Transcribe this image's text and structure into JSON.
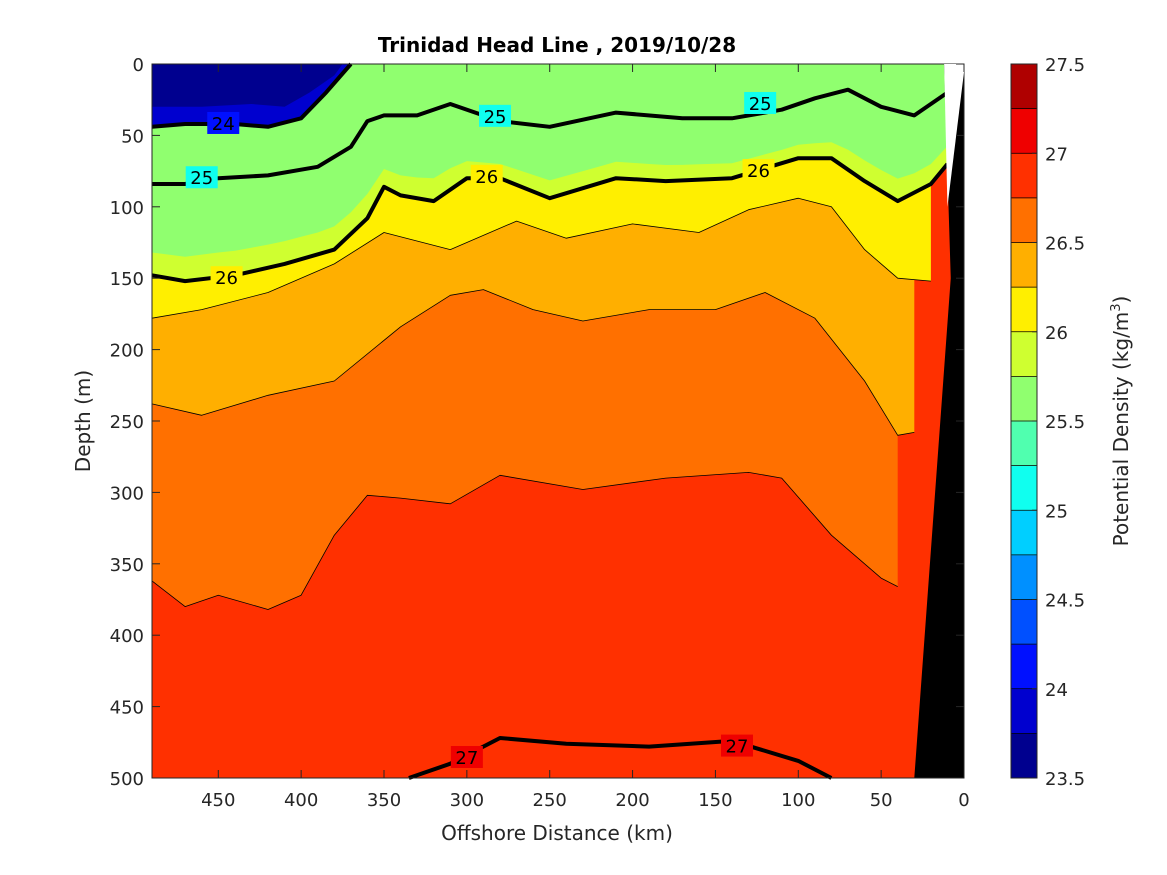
{
  "chart_data": {
    "type": "heatmap",
    "subtype": "filled-contour",
    "title": "Trinidad Head Line , 2019/10/28",
    "xlabel": "Offshore Distance (km)",
    "ylabel": "Depth (m)",
    "xlim": [
      490,
      0
    ],
    "ylim": [
      0,
      500
    ],
    "x_reversed": true,
    "y_reversed": true,
    "xticks": [
      "450",
      "400",
      "350",
      "300",
      "250",
      "200",
      "150",
      "100",
      "50",
      "0"
    ],
    "xtick_values": [
      450,
      400,
      350,
      300,
      250,
      200,
      150,
      100,
      50,
      0
    ],
    "yticks": [
      "0",
      "50",
      "100",
      "150",
      "200",
      "250",
      "300",
      "350",
      "400",
      "450",
      "500"
    ],
    "ytick_values": [
      0,
      50,
      100,
      150,
      200,
      250,
      300,
      350,
      400,
      450,
      500
    ],
    "colorbar": {
      "label": "Potential Density (kg/m",
      "label_sup": "3",
      "label_end": ")",
      "range": [
        23.5,
        27.5
      ],
      "step": 0.25,
      "ticks": [
        "27.5",
        "27",
        "26.5",
        "26",
        "25.5",
        "25",
        "24.5",
        "24",
        "23.5"
      ],
      "tick_values": [
        27.5,
        27,
        26.5,
        26,
        25.5,
        25,
        24.5,
        24,
        23.5
      ],
      "colormap": "jet",
      "colors": [
        "#00008f",
        "#0000cf",
        "#0010ff",
        "#0050ff",
        "#0090ff",
        "#00cfff",
        "#10ffef",
        "#50ffaf",
        "#90ff6f",
        "#cfff30",
        "#ffef00",
        "#ffaf00",
        "#ff7000",
        "#ff3000",
        "#ef0000",
        "#af0000"
      ]
    },
    "contour_labels": [
      {
        "text": "24",
        "x": 447,
        "y": 42
      },
      {
        "text": "25",
        "x": 460,
        "y": 80
      },
      {
        "text": "26",
        "x": 445,
        "y": 150
      },
      {
        "text": "25",
        "x": 283,
        "y": 37
      },
      {
        "text": "26",
        "x": 288,
        "y": 79
      },
      {
        "text": "25",
        "x": 123,
        "y": 28
      },
      {
        "text": "26",
        "x": 124,
        "y": 75
      },
      {
        "text": "27",
        "x": 300,
        "y": 486
      },
      {
        "text": "27",
        "x": 137,
        "y": 478
      }
    ],
    "isolines": [
      {
        "level": 27.0,
        "bold": true,
        "x": [
          335,
          310,
          280,
          240,
          190,
          140,
          100,
          80
        ],
        "y": [
          500,
          490,
          472,
          476,
          478,
          474,
          488,
          500
        ]
      },
      {
        "level": 26.75,
        "bold": false,
        "x": [
          490,
          470,
          450,
          420,
          400,
          380,
          360,
          340,
          310,
          280,
          230,
          180,
          130,
          110,
          80,
          50,
          40
        ],
        "y": [
          362,
          380,
          372,
          382,
          372,
          330,
          302,
          304,
          308,
          288,
          298,
          290,
          286,
          290,
          330,
          360,
          366
        ]
      },
      {
        "level": 26.5,
        "bold": false,
        "x": [
          490,
          460,
          420,
          380,
          340,
          310,
          290,
          260,
          230,
          190,
          150,
          120,
          90,
          60,
          40,
          30
        ],
        "y": [
          238,
          246,
          232,
          222,
          184,
          162,
          158,
          172,
          180,
          172,
          172,
          160,
          178,
          222,
          260,
          258
        ]
      },
      {
        "level": 26.25,
        "bold": false,
        "x": [
          490,
          460,
          420,
          380,
          350,
          310,
          270,
          240,
          200,
          160,
          130,
          100,
          80,
          60,
          40,
          20
        ],
        "y": [
          178,
          172,
          160,
          140,
          118,
          130,
          110,
          122,
          112,
          118,
          102,
          94,
          100,
          130,
          150,
          152
        ]
      },
      {
        "level": 26.0,
        "bold": true,
        "x": [
          490,
          470,
          440,
          410,
          380,
          360,
          350,
          340,
          320,
          300,
          280,
          250,
          210,
          180,
          140,
          100,
          80,
          60,
          40,
          20,
          10
        ],
        "y": [
          148,
          152,
          148,
          140,
          130,
          108,
          86,
          92,
          96,
          80,
          80,
          94,
          80,
          82,
          80,
          66,
          66,
          82,
          96,
          84,
          70
        ]
      },
      {
        "level": 25.0,
        "bold": true,
        "x": [
          490,
          470,
          450,
          420,
          390,
          370,
          360,
          350,
          330,
          310,
          280,
          250,
          210,
          170,
          140,
          110,
          90,
          70,
          50,
          30,
          10
        ],
        "y": [
          84,
          84,
          80,
          78,
          72,
          58,
          40,
          36,
          36,
          28,
          40,
          44,
          34,
          38,
          38,
          32,
          24,
          18,
          30,
          36,
          20
        ]
      },
      {
        "level": 24.0,
        "bold": true,
        "x": [
          490,
          470,
          440,
          420,
          400,
          385,
          370
        ],
        "y": [
          44,
          42,
          42,
          44,
          38,
          20,
          0
        ]
      }
    ],
    "seafloor": {
      "top_x": 0,
      "bottom_x": 30,
      "color": "#000000"
    }
  }
}
